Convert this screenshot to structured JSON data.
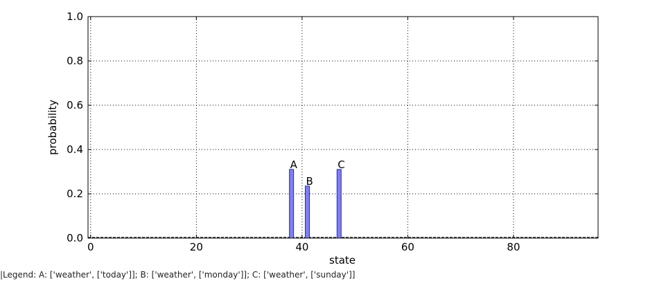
{
  "chart_data": {
    "type": "bar",
    "x": [
      38,
      41,
      47
    ],
    "values": [
      0.31,
      0.235,
      0.31
    ],
    "bar_labels": [
      "A",
      "B",
      "C"
    ],
    "xlabel": "state",
    "ylabel": "probability",
    "xlim": [
      -0.5,
      96
    ],
    "ylim": [
      0,
      1.0
    ],
    "xticks": [
      0,
      20,
      40,
      60,
      80
    ],
    "xtick_labels": [
      "0",
      "20",
      "40",
      "60",
      "80"
    ],
    "yticks": [
      0,
      0.2,
      0.4,
      0.6,
      0.8,
      1.0
    ],
    "ytick_labels": [
      "0.0",
      "0.2",
      "0.4",
      "0.6",
      "0.8",
      "1.0"
    ],
    "grid": true,
    "bar_color": "#7f7fef",
    "bar_edge_color": "#2a2ab0"
  },
  "legend_caption": "|Legend: A: ['weather', ['today']]; B: ['weather', ['monday']]; C: ['weather', ['sunday']]"
}
